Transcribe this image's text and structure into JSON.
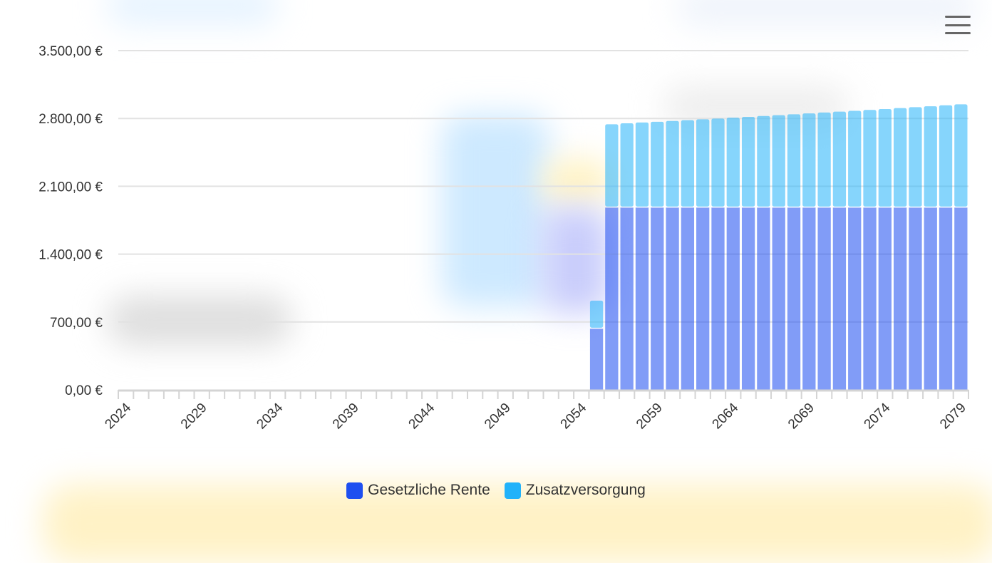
{
  "chart_data": {
    "type": "bar",
    "stacked": true,
    "categories": [
      2024,
      2025,
      2026,
      2027,
      2028,
      2029,
      2030,
      2031,
      2032,
      2033,
      2034,
      2035,
      2036,
      2037,
      2038,
      2039,
      2040,
      2041,
      2042,
      2043,
      2044,
      2045,
      2046,
      2047,
      2048,
      2049,
      2050,
      2051,
      2052,
      2053,
      2054,
      2055,
      2056,
      2057,
      2058,
      2059,
      2060,
      2061,
      2062,
      2063,
      2064,
      2065,
      2066,
      2067,
      2068,
      2069,
      2070,
      2071,
      2072,
      2073,
      2074,
      2075,
      2076,
      2077,
      2078,
      2079
    ],
    "series": [
      {
        "name": "Gesetzliche Rente",
        "color": "#1e4ff0",
        "values": [
          0,
          0,
          0,
          0,
          0,
          0,
          0,
          0,
          0,
          0,
          0,
          0,
          0,
          0,
          0,
          0,
          0,
          0,
          0,
          0,
          0,
          0,
          0,
          0,
          0,
          0,
          0,
          0,
          0,
          0,
          0,
          630,
          1880,
          1880,
          1880,
          1880,
          1880,
          1880,
          1880,
          1880,
          1880,
          1880,
          1880,
          1880,
          1880,
          1880,
          1880,
          1880,
          1880,
          1880,
          1880,
          1880,
          1880,
          1880,
          1880,
          1880
        ]
      },
      {
        "name": "Zusatzversorgung",
        "color": "#22b2fa",
        "values": [
          0,
          0,
          0,
          0,
          0,
          0,
          0,
          0,
          0,
          0,
          0,
          0,
          0,
          0,
          0,
          0,
          0,
          0,
          0,
          0,
          0,
          0,
          0,
          0,
          0,
          0,
          0,
          0,
          0,
          0,
          0,
          290,
          860,
          870,
          878,
          886,
          894,
          902,
          911,
          919,
          928,
          936,
          945,
          954,
          963,
          972,
          981,
          990,
          999,
          1008,
          1017,
          1027,
          1036,
          1046,
          1056,
          1066
        ]
      }
    ],
    "y_ticks": [
      "0,00 €",
      "700,00 €",
      "1.400,00 €",
      "2.100,00 €",
      "2.800,00 €",
      "3.500,00 €"
    ],
    "x_ticks": [
      "2024",
      "2029",
      "2034",
      "2039",
      "2044",
      "2049",
      "2054",
      "2059",
      "2064",
      "2069",
      "2074",
      "2079"
    ],
    "ylim": [
      0,
      3500
    ],
    "grid": true,
    "legend_position": "bottom-center",
    "title": "",
    "xlabel": "",
    "ylabel": ""
  },
  "toolbar": {
    "menu_icon": "hamburger-menu-icon"
  }
}
